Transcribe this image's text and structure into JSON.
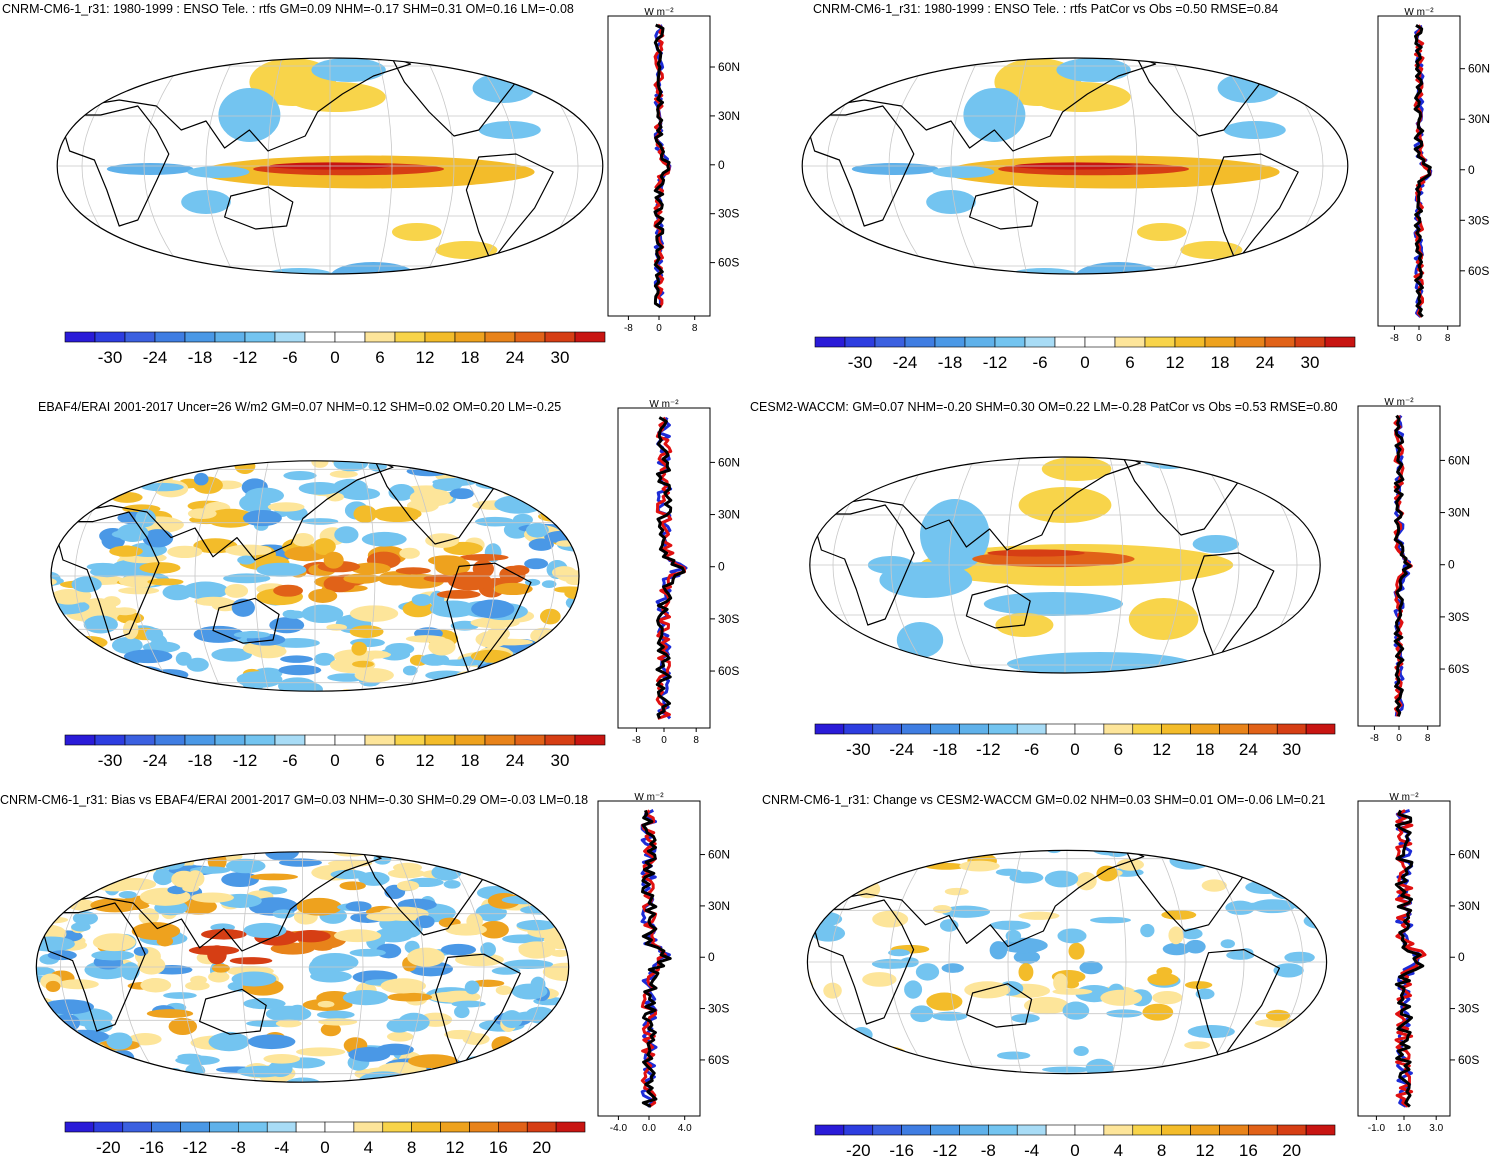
{
  "units_label": "W m⁻²",
  "colors": {
    "ocean_bg": "#ffffff",
    "coast": "#000000",
    "grid": "#c8c8c8",
    "series_model": "#e01010",
    "series_obs": "#1c2bd6",
    "series_diff": "#000000"
  },
  "palette": [
    "#2a1bd8",
    "#2d3de0",
    "#3b60e0",
    "#3f7de2",
    "#4a98e6",
    "#5fb1ea",
    "#73c4f0",
    "#a8dcf6",
    "#ffffff",
    "#ffffff",
    "#fde59a",
    "#f8d44a",
    "#f3bc2a",
    "#eea21e",
    "#e8831a",
    "#e16218",
    "#d63e14",
    "#c81512"
  ],
  "panels": [
    {
      "id": "p1",
      "title": "CNRM-CM6-1_r31: 1980-1999 : ENSO Tele. : rtfs GM=0.09 NHM=-0.17 SHM=0.31 OM=0.16 LM=-0.08",
      "colorbar_labels": [
        "-30",
        "-24",
        "-18",
        "-12",
        "-6",
        "0",
        "6",
        "12",
        "18",
        "24",
        "30"
      ],
      "zonal_xticks": [
        "-8",
        "0",
        "8"
      ],
      "zonal_yticks": [
        "60N",
        "30N",
        "0",
        "30S",
        "60S"
      ],
      "pattern": "enso"
    },
    {
      "id": "p2",
      "title": "CNRM-CM6-1_r31: 1980-1999 : ENSO Tele. : rtfs PatCor vs Obs =0.50 RMSE=0.84",
      "colorbar_labels": [
        "-30",
        "-24",
        "-18",
        "-12",
        "-6",
        "0",
        "6",
        "12",
        "18",
        "24",
        "30"
      ],
      "zonal_xticks": [
        "-8",
        "0",
        "8"
      ],
      "zonal_yticks": [
        "60N",
        "30N",
        "0",
        "30S",
        "60S"
      ],
      "pattern": "enso"
    },
    {
      "id": "p3",
      "title": "EBAF4/ERAI 2001-2017 Uncer=26 W/m2 GM=0.07 NHM=0.12 SHM=0.02 OM=0.20 LM=-0.25",
      "colorbar_labels": [
        "-30",
        "-24",
        "-18",
        "-12",
        "-6",
        "0",
        "6",
        "12",
        "18",
        "24",
        "30"
      ],
      "zonal_xticks": [
        "-8",
        "0",
        "8"
      ],
      "zonal_yticks": [
        "60N",
        "30N",
        "0",
        "30S",
        "60S"
      ],
      "pattern": "obs"
    },
    {
      "id": "p4",
      "title": "CESM2-WACCM: GM=0.07 NHM=-0.20 SHM=0.30 OM=0.22 LM=-0.28 PatCor vs Obs =0.53 RMSE=0.80",
      "colorbar_labels": [
        "-30",
        "-24",
        "-18",
        "-12",
        "-6",
        "0",
        "6",
        "12",
        "18",
        "24",
        "30"
      ],
      "zonal_xticks": [
        "-8",
        "0",
        "8"
      ],
      "zonal_yticks": [
        "60N",
        "30N",
        "0",
        "30S",
        "60S"
      ],
      "pattern": "enso2"
    },
    {
      "id": "p5",
      "title": "CNRM-CM6-1_r31: Bias vs EBAF4/ERAI 2001-2017 GM=0.03 NHM=-0.30 SHM=0.29 OM=-0.03 LM=0.18",
      "colorbar_labels": [
        "-20",
        "-16",
        "-12",
        "-8",
        "-4",
        "0",
        "4",
        "8",
        "12",
        "16",
        "20"
      ],
      "zonal_xticks": [
        "-4.0",
        "0.0",
        "4.0"
      ],
      "zonal_yticks": [
        "60N",
        "30N",
        "0",
        "30S",
        "60S"
      ],
      "pattern": "bias"
    },
    {
      "id": "p6",
      "title": "CNRM-CM6-1_r31: Change vs CESM2-WACCM GM=0.02 NHM=0.03 SHM=0.01 OM=-0.06 LM=0.21",
      "colorbar_labels": [
        "-20",
        "-16",
        "-12",
        "-8",
        "-4",
        "0",
        "4",
        "8",
        "12",
        "16",
        "20"
      ],
      "zonal_xticks": [
        "-1.0",
        "1.0",
        "3.0"
      ],
      "zonal_yticks": [
        "60N",
        "30N",
        "0",
        "30S",
        "60S"
      ],
      "pattern": "change"
    }
  ]
}
